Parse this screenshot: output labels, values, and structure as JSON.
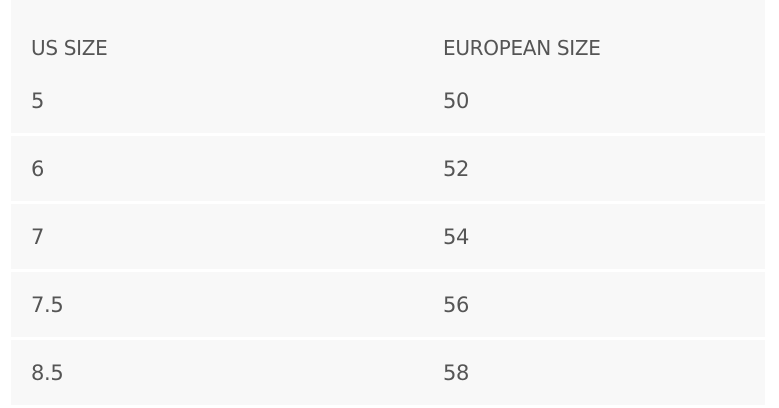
{
  "table": {
    "headers": [
      "US SIZE",
      "EUROPEAN SIZE"
    ],
    "rows": [
      [
        "5",
        "50"
      ],
      [
        "6",
        "52"
      ],
      [
        "7",
        "54"
      ],
      [
        "7.5",
        "56"
      ],
      [
        "8.5",
        "58"
      ]
    ]
  }
}
